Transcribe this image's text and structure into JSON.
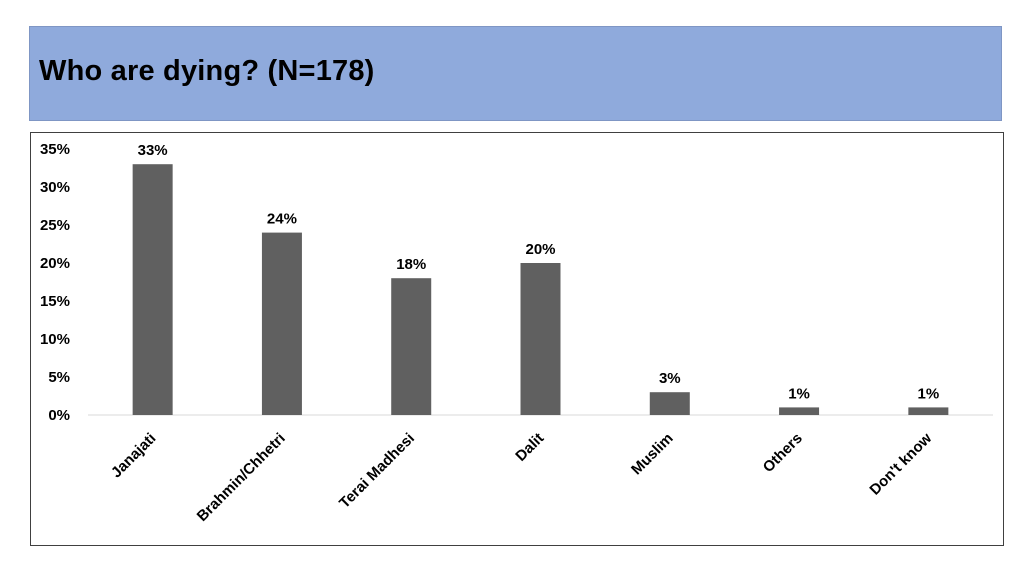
{
  "header": {
    "title": "Who are dying? (N=178)"
  },
  "chart_data": {
    "type": "bar",
    "title": "Who are dying? (N=178)",
    "categories": [
      "Janajati",
      "Brahmin/Chhetri",
      "Terai Madhesi",
      "Dalit",
      "Muslim",
      "Others",
      "Don't know"
    ],
    "values": [
      33,
      24,
      18,
      20,
      3,
      1,
      1
    ],
    "data_labels": [
      "33%",
      "24%",
      "18%",
      "20%",
      "3%",
      "1%",
      "1%"
    ],
    "yticks": [
      "0%",
      "5%",
      "10%",
      "15%",
      "20%",
      "25%",
      "30%",
      "35%"
    ],
    "ylim": [
      0,
      35
    ],
    "xlabel": "",
    "ylabel": "",
    "grid": false,
    "legend": "none",
    "bar_color": "#606060"
  }
}
